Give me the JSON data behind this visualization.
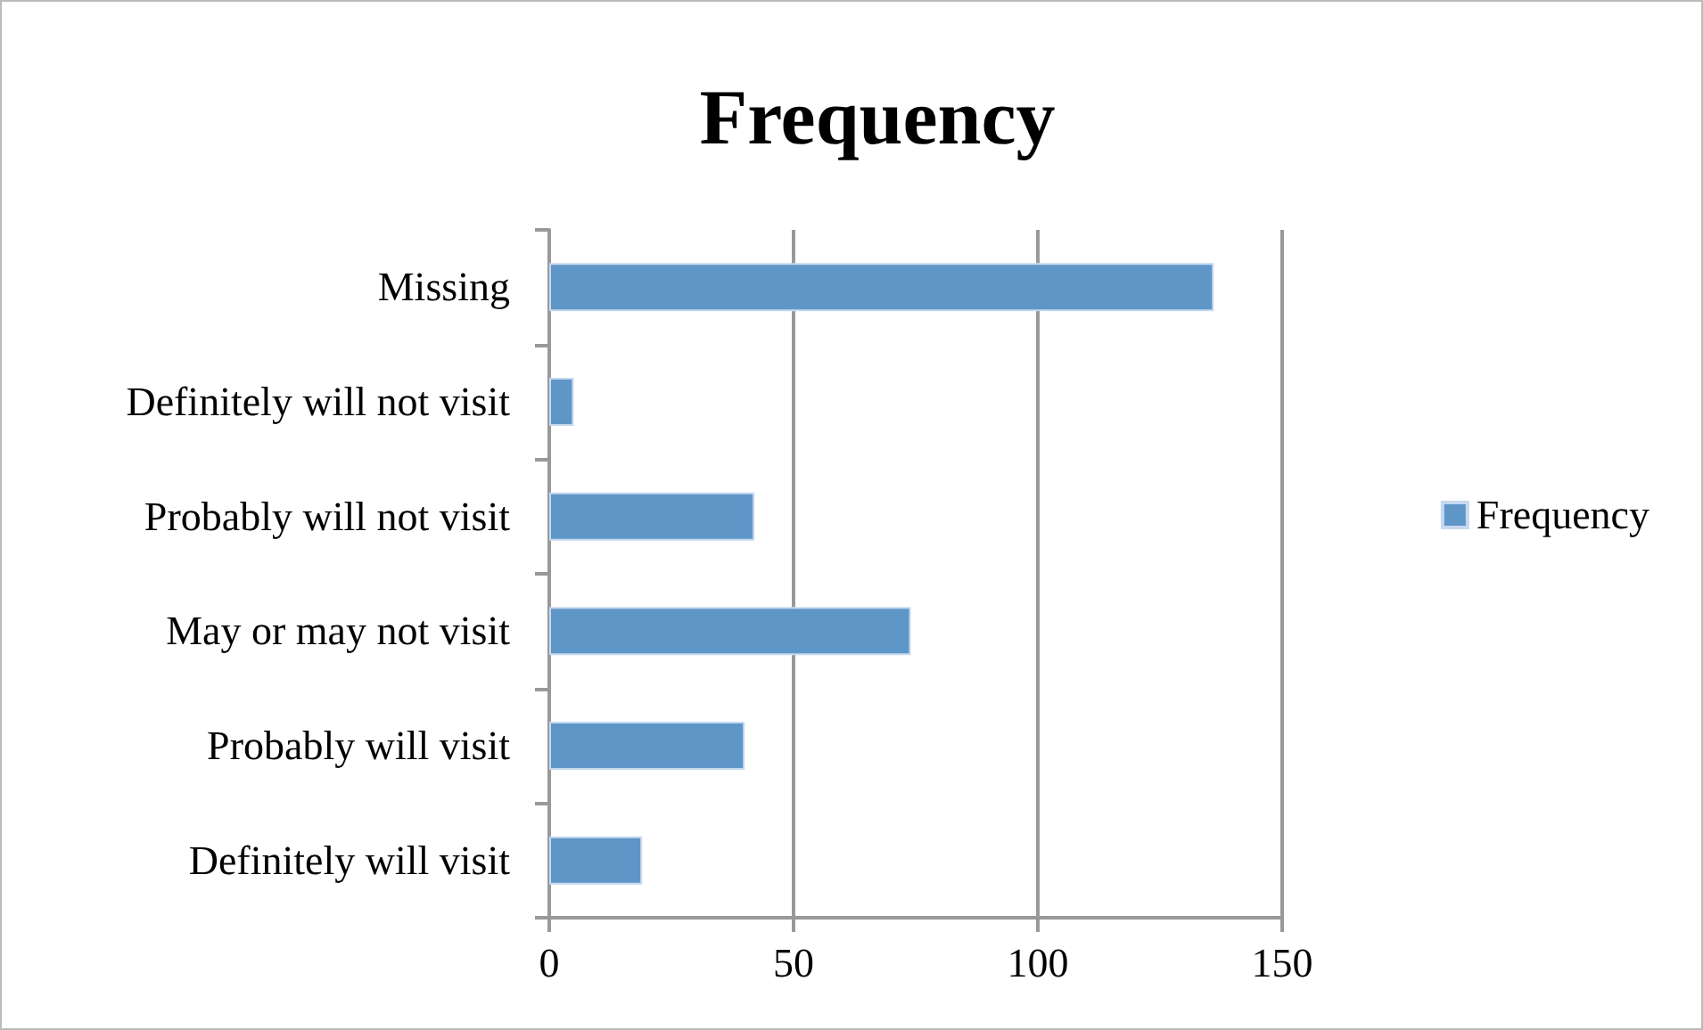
{
  "chart_data": {
    "type": "bar",
    "orientation": "horizontal",
    "title": "Frequency",
    "categories": [
      "Missing",
      "Definitely will not visit",
      "Probably will not visit",
      "May or may not visit",
      "Probably will visit",
      "Definitely will visit"
    ],
    "series": [
      {
        "name": "Frequency",
        "color": "#5f96c8",
        "values": [
          136,
          5,
          42,
          74,
          40,
          19
        ]
      }
    ],
    "xlim": [
      0,
      150
    ],
    "xticks": [
      0,
      50,
      100,
      150
    ],
    "grid": "x",
    "legend": "right"
  }
}
